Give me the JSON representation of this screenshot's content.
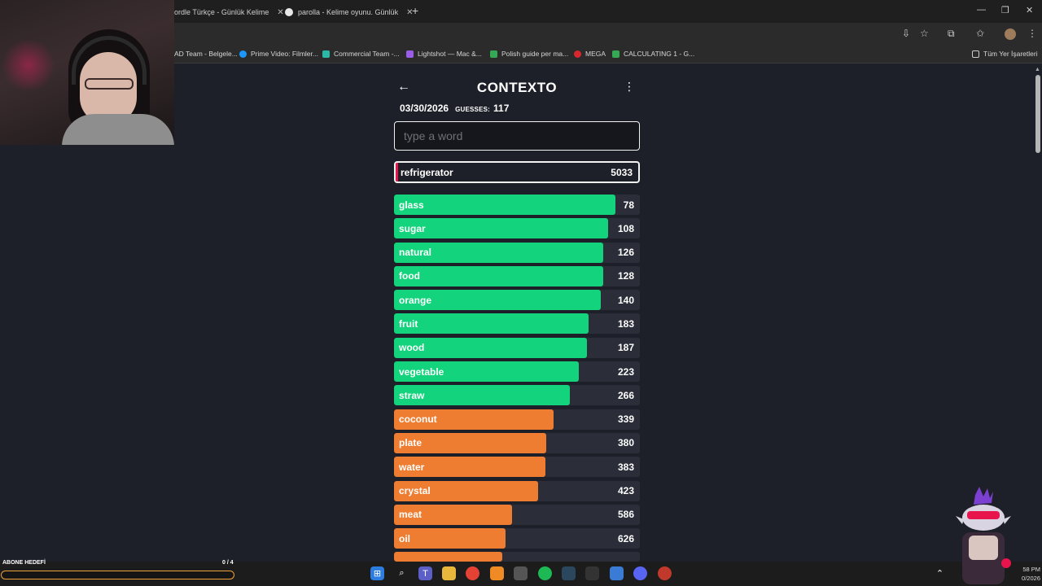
{
  "browser": {
    "tabs": [
      {
        "title": "ordle Türkçe - Günlük Kelime"
      },
      {
        "title": "parolla - Kelime oyunu. Günlük"
      }
    ],
    "new_tab": "+",
    "bookmarks": [
      {
        "label": "AD Team - Belgele...",
        "color": "#4a7bd4"
      },
      {
        "label": "Prime Video: Filmler...",
        "color": "#1a98ff"
      },
      {
        "label": "Commercial Team -...",
        "color": "#2bb8a6"
      },
      {
        "label": "Lightshot — Mac &...",
        "color": "#9b5de5"
      },
      {
        "label": "Polish guide per ma...",
        "color": "#34a853"
      },
      {
        "label": "MEGA",
        "color": "#d9272e"
      },
      {
        "label": "CALCULATING 1 - G...",
        "color": "#34a853"
      }
    ],
    "all_bookmarks": "Tüm Yer İşaretleri"
  },
  "game": {
    "title": "CONTEXTO",
    "date": "03/30/2026",
    "guesses_label": "GUESSES:",
    "guesses_count": "117",
    "input_placeholder": "type a word",
    "last_guess": {
      "word": "refrigerator",
      "rank": "5033"
    },
    "colors": {
      "green": "#13d47c",
      "orange": "#ef7d31",
      "accent": "#e8154d"
    },
    "guesses": [
      {
        "word": "glass",
        "rank": "78",
        "fill": 0.9,
        "color": "green"
      },
      {
        "word": "sugar",
        "rank": "108",
        "fill": 0.87,
        "color": "green"
      },
      {
        "word": "natural",
        "rank": "126",
        "fill": 0.85,
        "color": "green"
      },
      {
        "word": "food",
        "rank": "128",
        "fill": 0.85,
        "color": "green"
      },
      {
        "word": "orange",
        "rank": "140",
        "fill": 0.84,
        "color": "green"
      },
      {
        "word": "fruit",
        "rank": "183",
        "fill": 0.79,
        "color": "green"
      },
      {
        "word": "wood",
        "rank": "187",
        "fill": 0.785,
        "color": "green"
      },
      {
        "word": "vegetable",
        "rank": "223",
        "fill": 0.75,
        "color": "green"
      },
      {
        "word": "straw",
        "rank": "266",
        "fill": 0.715,
        "color": "green"
      },
      {
        "word": "coconut",
        "rank": "339",
        "fill": 0.65,
        "color": "orange"
      },
      {
        "word": "plate",
        "rank": "380",
        "fill": 0.62,
        "color": "orange"
      },
      {
        "word": "water",
        "rank": "383",
        "fill": 0.617,
        "color": "orange"
      },
      {
        "word": "crystal",
        "rank": "423",
        "fill": 0.585,
        "color": "orange"
      },
      {
        "word": "meat",
        "rank": "586",
        "fill": 0.48,
        "color": "orange"
      },
      {
        "word": "oil",
        "rank": "626",
        "fill": 0.455,
        "color": "orange"
      }
    ]
  },
  "overlay": {
    "sub_goal_label": "ABONE HEDEFİ",
    "sub_goal_count": "0 / 4"
  },
  "taskbar": {
    "time": "58 PM",
    "date": "0/2026"
  }
}
